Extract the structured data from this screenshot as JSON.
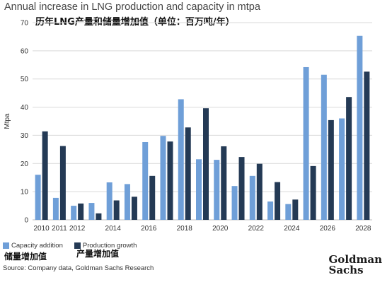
{
  "chart_data": {
    "type": "bar",
    "title": "Annual increase in LNG production and capacity in mtpa",
    "subtitle": "历年LNG产量和储量增加值（单位：百万吨/年）",
    "ylabel": "Mtpa",
    "xlabel": "",
    "ylim": [
      0,
      70
    ],
    "yticks": [
      0,
      10,
      20,
      30,
      40,
      50,
      60,
      70
    ],
    "grid": true,
    "legend_position": "bottom-left",
    "categories": [
      "2010",
      "2011",
      "2012",
      "2013",
      "2014",
      "2015",
      "2016",
      "2017",
      "2018",
      "2019",
      "2020",
      "2021",
      "2022",
      "2023",
      "2024",
      "2025",
      "2026",
      "2027",
      "2028"
    ],
    "xtick_labels": [
      "2010",
      "2011",
      "2012",
      "",
      "2014",
      "",
      "2016",
      "",
      "2018",
      "",
      "2020",
      "",
      "2022",
      "",
      "2024",
      "",
      "2026",
      "",
      "2028"
    ],
    "series": [
      {
        "name": "Capacity addition",
        "color": "#6f9fd8",
        "values": [
          16,
          7.8,
          5,
          6,
          13.3,
          12.7,
          27.6,
          29.8,
          42.8,
          21.5,
          21.3,
          12,
          15.6,
          6.5,
          5.6,
          54.2,
          51.5,
          36,
          65.3
        ]
      },
      {
        "name": "Production growth",
        "color": "#243a55",
        "values": [
          31.4,
          26.2,
          5.8,
          2.3,
          6.9,
          8.2,
          15.6,
          27.8,
          32.8,
          39.6,
          26.1,
          22.3,
          19.9,
          13.4,
          7.2,
          19.1,
          35.4,
          43.6,
          52.6
        ]
      }
    ]
  },
  "legend": {
    "capacity_label": "Capacity addition",
    "production_label": "Production growth",
    "capacity_note": "储量增加值",
    "production_note": "产量增加值"
  },
  "source": "Source: Company data, Goldman Sachs Research",
  "logo": {
    "line1": "Goldman",
    "line2": "Sachs"
  }
}
